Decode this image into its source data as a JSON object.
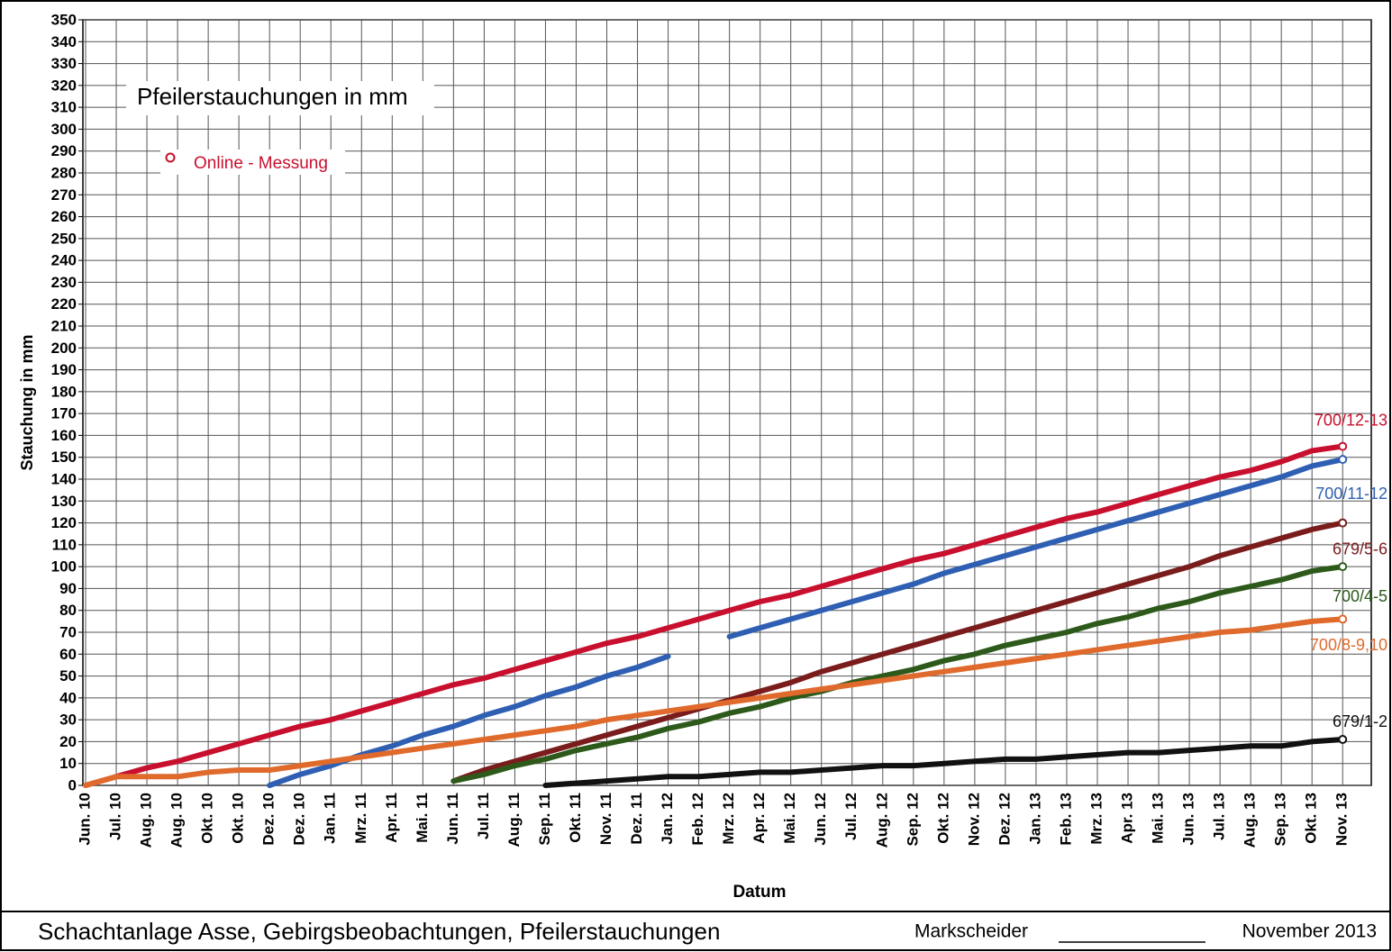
{
  "chart_data": {
    "type": "line",
    "title": "Pfeilerstauchungen in mm",
    "legend_label": "Online - Messung",
    "x_label": "Datum",
    "y_label": "Stauchung in mm",
    "footer": {
      "left": "Schachtanlage Asse, Gebirgsbeobachtungen, Pfeilerstauchungen",
      "signature": "Markscheider",
      "date": "November 2013"
    },
    "categories": [
      "Jun. 10",
      "Jul. 10",
      "Aug. 10",
      "Aug. 10",
      "Okt. 10",
      "Okt. 10",
      "Dez. 10",
      "Dez. 10",
      "Jan. 11",
      "Mrz. 11",
      "Apr. 11",
      "Mai. 11",
      "Jun. 11",
      "Jul. 11",
      "Aug. 11",
      "Sep. 11",
      "Okt. 11",
      "Nov. 11",
      "Dez. 11",
      "Jan. 12",
      "Feb. 12",
      "Mrz. 12",
      "Apr. 12",
      "Mai. 12",
      "Jun. 12",
      "Jul. 12",
      "Aug. 12",
      "Sep. 12",
      "Okt. 12",
      "Nov. 12",
      "Dez. 12",
      "Jan. 13",
      "Feb. 13",
      "Mrz. 13",
      "Apr. 13",
      "Mai. 13",
      "Jun. 13",
      "Jul. 13",
      "Aug. 13",
      "Sep. 13",
      "Okt. 13",
      "Nov. 13"
    ],
    "ylim": [
      0,
      350
    ],
    "yticks": [
      0,
      10,
      20,
      30,
      40,
      50,
      60,
      70,
      80,
      90,
      100,
      110,
      120,
      130,
      140,
      150,
      160,
      170,
      180,
      190,
      200,
      210,
      220,
      230,
      240,
      250,
      260,
      270,
      280,
      290,
      300,
      310,
      320,
      330,
      340,
      350
    ],
    "grid": true,
    "series": [
      {
        "name": "700/12-13",
        "color": "#c8102e",
        "values": [
          0,
          4,
          8,
          11,
          15,
          19,
          23,
          27,
          30,
          34,
          38,
          42,
          46,
          49,
          53,
          57,
          61,
          65,
          68,
          72,
          76,
          80,
          84,
          87,
          91,
          95,
          99,
          103,
          106,
          110,
          114,
          118,
          122,
          125,
          129,
          133,
          137,
          141,
          144,
          148,
          153,
          155
        ]
      },
      {
        "name": "700/11-12",
        "color": "#2f5fb3",
        "values": [
          null,
          null,
          null,
          null,
          null,
          null,
          0,
          5,
          9,
          14,
          18,
          23,
          27,
          32,
          36,
          41,
          45,
          50,
          54,
          59,
          null,
          68,
          72,
          76,
          80,
          84,
          88,
          92,
          97,
          101,
          105,
          109,
          113,
          117,
          121,
          125,
          129,
          133,
          137,
          141,
          146,
          149
        ]
      },
      {
        "name": "679/5-6",
        "color": "#7a1c1c",
        "values": [
          null,
          null,
          null,
          null,
          null,
          null,
          null,
          null,
          null,
          null,
          null,
          null,
          2,
          7,
          11,
          15,
          19,
          23,
          27,
          31,
          35,
          39,
          43,
          47,
          52,
          56,
          60,
          64,
          68,
          72,
          76,
          80,
          84,
          88,
          92,
          96,
          100,
          105,
          109,
          113,
          117,
          120
        ]
      },
      {
        "name": "700/4-5",
        "color": "#2d5a1b",
        "values": [
          null,
          null,
          null,
          null,
          null,
          null,
          null,
          null,
          null,
          null,
          null,
          null,
          2,
          5,
          9,
          12,
          16,
          19,
          22,
          26,
          29,
          33,
          36,
          40,
          43,
          47,
          50,
          53,
          57,
          60,
          64,
          67,
          70,
          74,
          77,
          81,
          84,
          88,
          91,
          94,
          98,
          100
        ]
      },
      {
        "name": "700/8-9,10",
        "color": "#e06a2c",
        "values": [
          0,
          4,
          4,
          4,
          6,
          7,
          7,
          9,
          11,
          13,
          15,
          17,
          19,
          21,
          23,
          25,
          27,
          30,
          32,
          34,
          36,
          38,
          40,
          42,
          44,
          46,
          48,
          50,
          52,
          54,
          56,
          58,
          60,
          62,
          64,
          66,
          68,
          70,
          71,
          73,
          75,
          76
        ]
      },
      {
        "name": "679/1-2",
        "color": "#111111",
        "values": [
          null,
          null,
          null,
          null,
          null,
          null,
          null,
          null,
          null,
          null,
          null,
          null,
          null,
          null,
          null,
          0,
          1,
          2,
          3,
          4,
          4,
          5,
          6,
          6,
          7,
          8,
          9,
          9,
          10,
          11,
          12,
          12,
          13,
          14,
          15,
          15,
          16,
          17,
          18,
          18,
          20,
          21
        ]
      }
    ]
  }
}
